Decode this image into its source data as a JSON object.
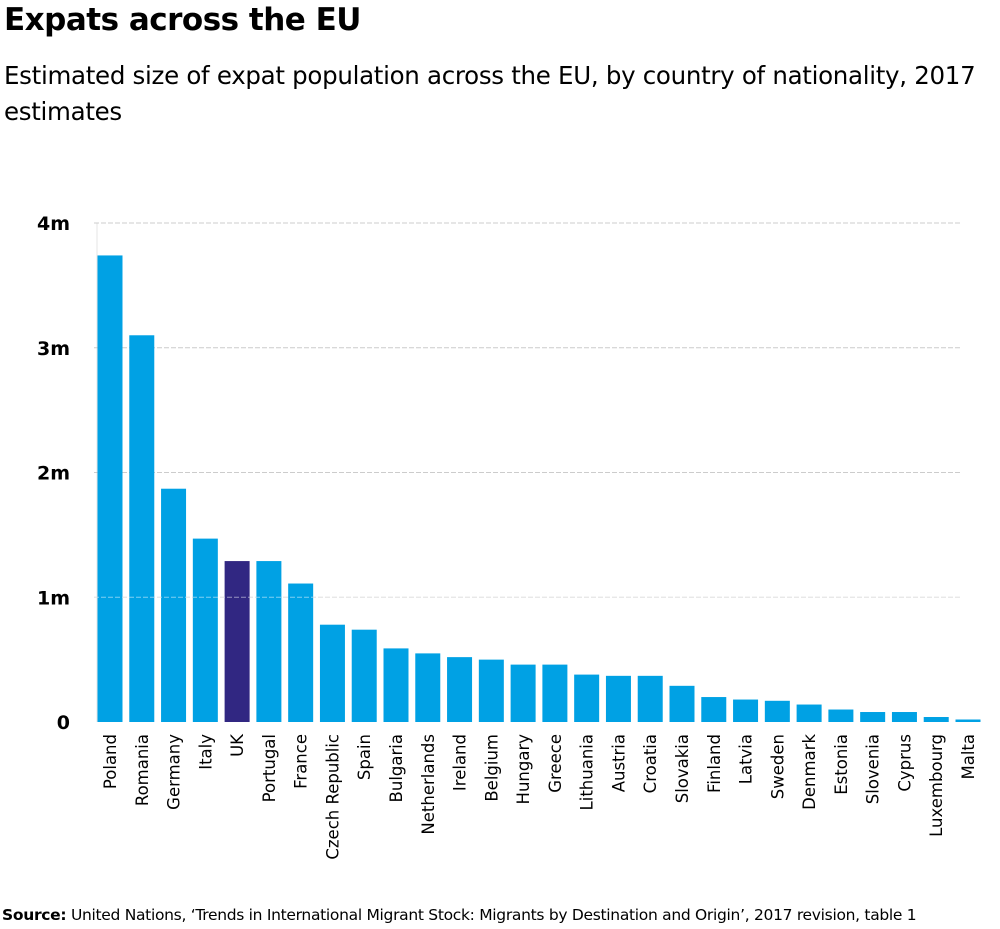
{
  "title": "Expats across the EU",
  "subtitle": "Estimated size of expat population across the EU, by country of nationality, 2017 estimates",
  "source": {
    "label": "Source:",
    "text": "United Nations, ‘Trends in International Migrant Stock: Migrants by Destination and Origin’, 2017 revision, table 1"
  },
  "colors": {
    "bar": "#00a1e4",
    "highlight": "#312782",
    "grid": "#cccccc"
  },
  "chart_data": {
    "type": "bar",
    "title": "Expats across the EU",
    "xlabel": "",
    "ylabel": "",
    "ylim": [
      0,
      4000000
    ],
    "yticks": [
      0,
      1000000,
      2000000,
      3000000,
      4000000
    ],
    "ytick_labels": [
      "0",
      "1m",
      "2m",
      "3m",
      "4m"
    ],
    "grid": true,
    "highlight": "UK",
    "categories": [
      "Poland",
      "Romania",
      "Germany",
      "Italy",
      "UK",
      "Portugal",
      "France",
      "Czech Republic",
      "Spain",
      "Bulgaria",
      "Netherlands",
      "Ireland",
      "Belgium",
      "Hungary",
      "Greece",
      "Lithuania",
      "Austria",
      "Croatia",
      "Slovakia",
      "Finland",
      "Latvia",
      "Sweden",
      "Denmark",
      "Estonia",
      "Slovenia",
      "Cyprus",
      "Luxembourg",
      "Malta"
    ],
    "values": [
      3740000,
      3100000,
      1870000,
      1470000,
      1290000,
      1290000,
      1110000,
      780000,
      740000,
      590000,
      550000,
      520000,
      500000,
      460000,
      460000,
      380000,
      370000,
      370000,
      290000,
      200000,
      180000,
      170000,
      140000,
      100000,
      80000,
      80000,
      40000,
      20000
    ]
  }
}
